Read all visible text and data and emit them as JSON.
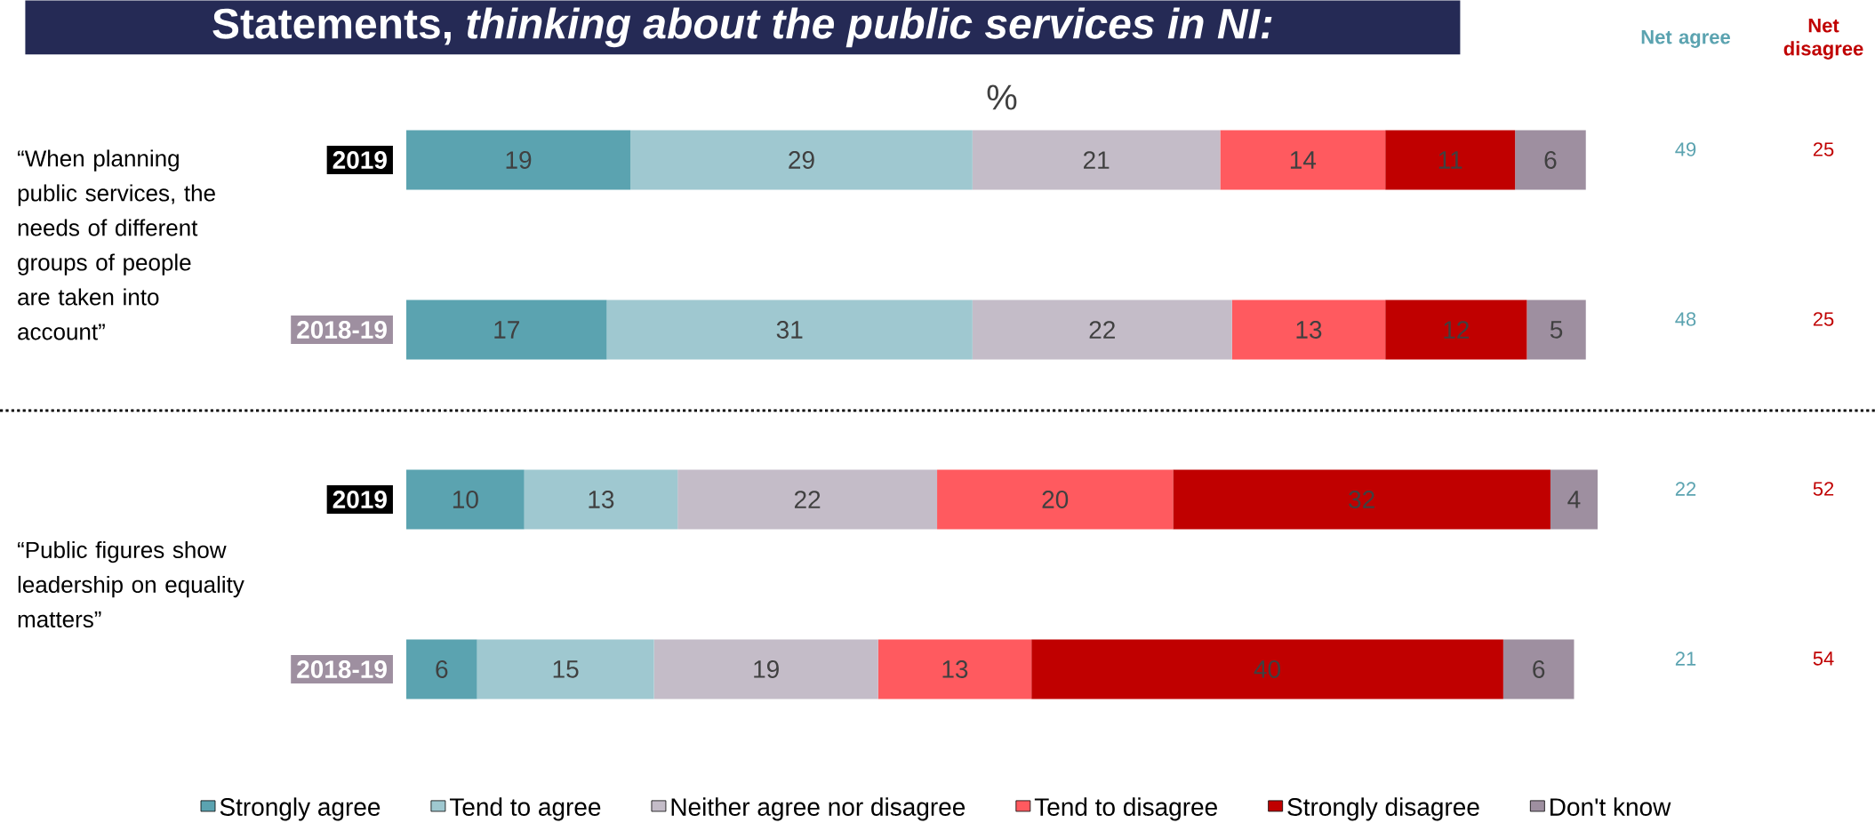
{
  "chart_data": {
    "type": "bar",
    "orientation": "horizontal",
    "stacked": true,
    "title": "Statements, *thinking about the public services in NI:*",
    "xlabel": "%",
    "categories": [
      "2019",
      "2018-19",
      "2019",
      "2018-19"
    ],
    "series": [
      {
        "name": "Strongly agree",
        "color": "#5ba3b0",
        "values": [
          19,
          17,
          10,
          6
        ]
      },
      {
        "name": "Tend to agree",
        "color": "#9fc8d0",
        "values": [
          29,
          31,
          13,
          15
        ]
      },
      {
        "name": "Neither agree nor disagree",
        "color": "#c4bcc8",
        "values": [
          21,
          22,
          22,
          19
        ]
      },
      {
        "name": "Tend to disagree",
        "color": "#ff5a5f",
        "values": [
          14,
          13,
          20,
          13
        ]
      },
      {
        "name": "Strongly disagree",
        "color": "#c00000",
        "values": [
          11,
          12,
          32,
          40
        ]
      },
      {
        "name": "Don't know",
        "color": "#9e8fa0",
        "values": [
          6,
          5,
          4,
          6
        ]
      }
    ],
    "data_labels": true,
    "tick_labels": "y",
    "legend": "bottom",
    "annotations": [
      "“When planning public services, the needs of different groups of people are taken into account”",
      "“Public figures show leadership on equality matters”",
      "Net agree",
      "Net disagree",
      "49",
      "25",
      "48",
      "25",
      "22",
      "52",
      "21",
      "54"
    ]
  }
}
